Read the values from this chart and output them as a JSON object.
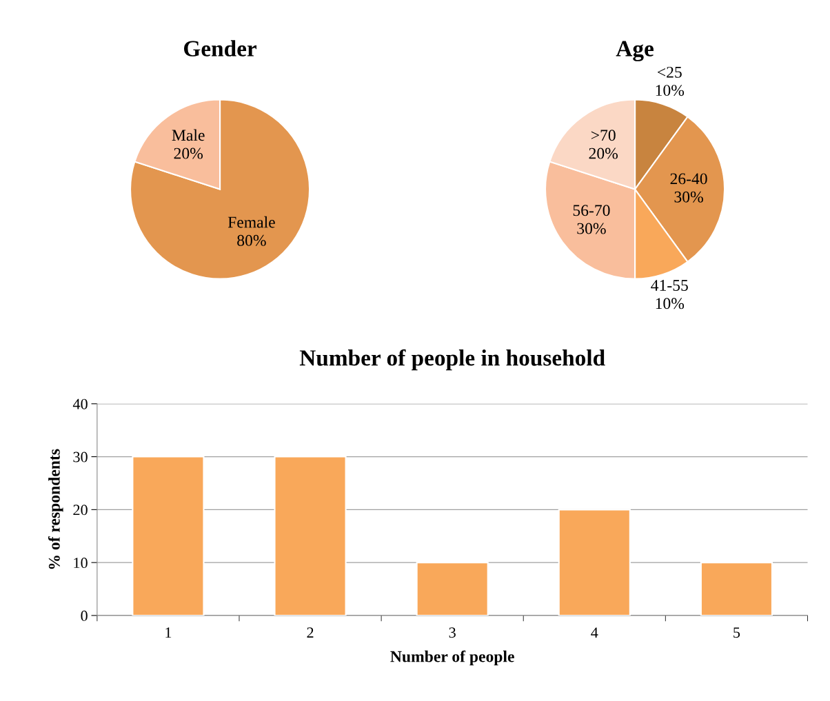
{
  "chart_data": [
    {
      "type": "pie",
      "title": "Gender",
      "categories": [
        "Female",
        "Male"
      ],
      "values": [
        80,
        20
      ],
      "value_labels": [
        "80%",
        "20%"
      ],
      "colors": [
        "#e3964f",
        "#f9be9c"
      ]
    },
    {
      "type": "pie",
      "title": "Age",
      "categories": [
        "<25",
        "26-40",
        "41-55",
        "56-70",
        ">70"
      ],
      "values": [
        10,
        30,
        10,
        30,
        20
      ],
      "value_labels": [
        "10%",
        "30%",
        "10%",
        "30%",
        "20%"
      ],
      "colors": [
        "#c8843f",
        "#e3964f",
        "#f9a85a",
        "#f9be9c",
        "#fbd8c5"
      ]
    },
    {
      "type": "bar",
      "title": "Number of people in household",
      "xlabel": "Number of people",
      "ylabel": "% of respondents",
      "categories": [
        "1",
        "2",
        "3",
        "4",
        "5"
      ],
      "values": [
        30,
        30,
        10,
        20,
        10
      ],
      "color": "#f9a85a",
      "ylim": [
        0,
        40
      ],
      "yticks": [
        0,
        10,
        20,
        30,
        40
      ],
      "grid": "y"
    }
  ]
}
